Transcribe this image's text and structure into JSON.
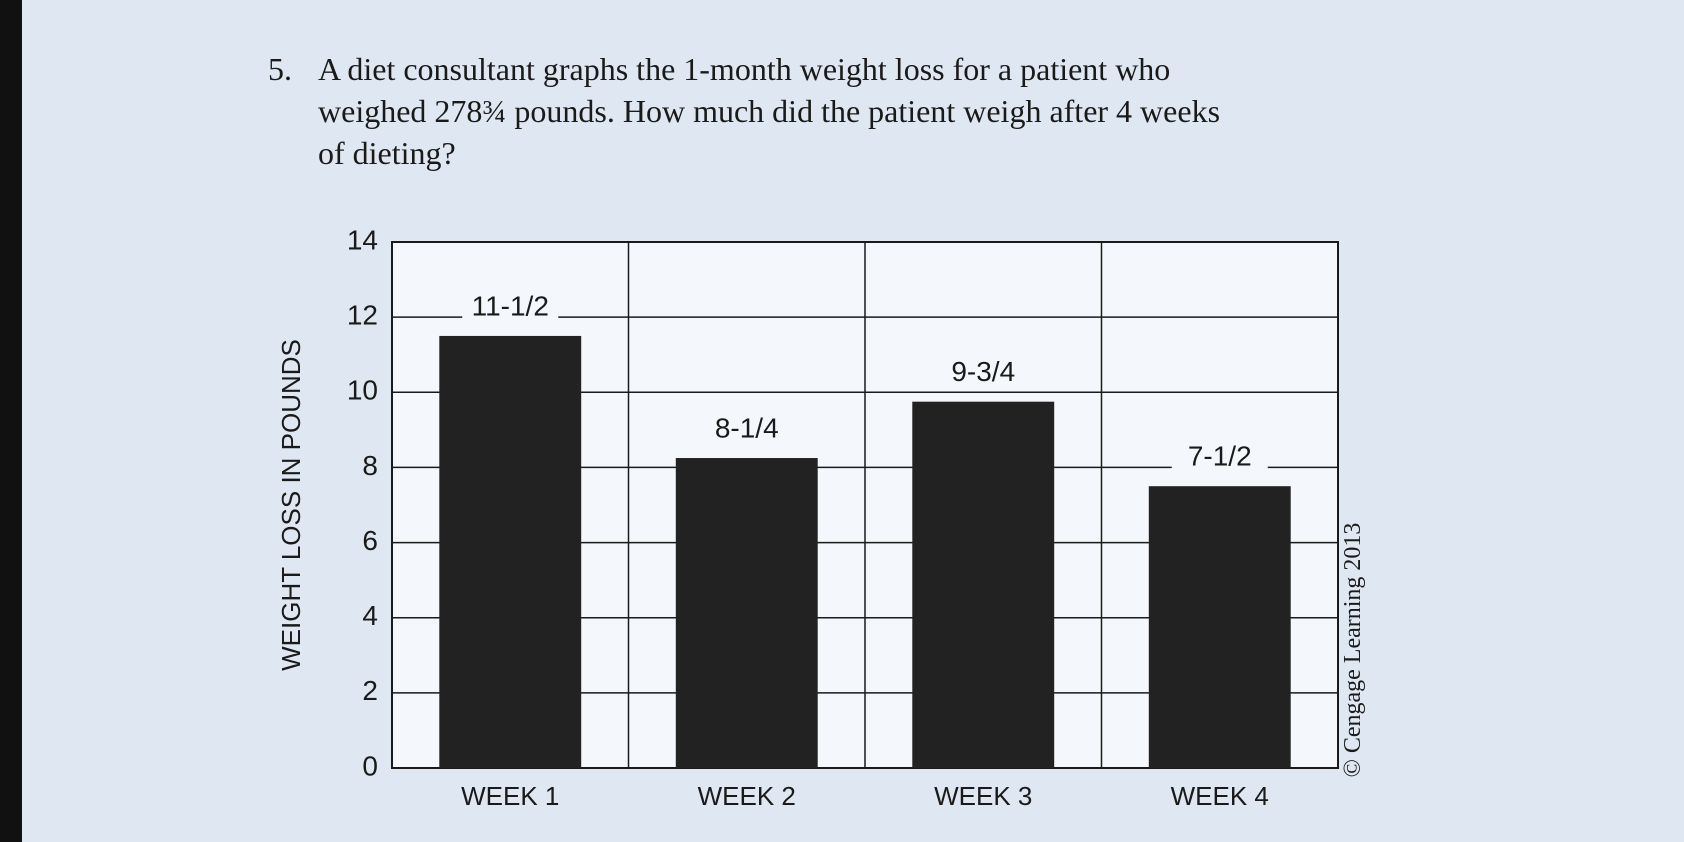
{
  "question": {
    "number": "5.",
    "lines": [
      "A diet consultant graphs the 1-month weight loss for a patient who",
      "weighed 278¾ pounds. How much did the patient weigh after 4 weeks",
      "of dieting?"
    ]
  },
  "chart_data": {
    "type": "bar",
    "y_label": "WEIGHT LOSS IN POUNDS",
    "credit": "© Cengage Learning 2013",
    "categories": [
      "WEEK 1",
      "WEEK 2",
      "WEEK 3",
      "WEEK 4"
    ],
    "values": [
      11.5,
      8.25,
      9.75,
      7.5
    ],
    "value_labels": [
      "11-1/2",
      "8-1/4",
      "9-3/4",
      "7-1/2"
    ],
    "color": "#222222",
    "ylim": [
      0,
      14
    ],
    "yticks": [
      0,
      2,
      4,
      6,
      8,
      10,
      12,
      14
    ],
    "grid": true
  }
}
